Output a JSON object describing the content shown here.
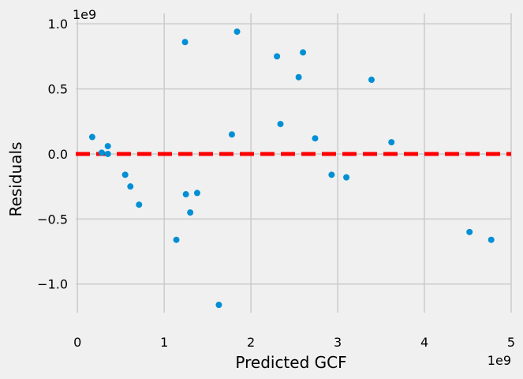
{
  "chart_data": {
    "type": "scatter",
    "title": "",
    "xlabel": "Predicted GCF",
    "ylabel": "Residuals",
    "x_offset_label": "1e9",
    "y_offset_label": "1e9",
    "xlim": [
      -0.02,
      5.0
    ],
    "ylim": [
      -1.22,
      1.08
    ],
    "x_ticks": [
      0,
      1,
      2,
      3,
      4,
      5
    ],
    "x_tick_labels": [
      "0",
      "1",
      "2",
      "3",
      "4",
      "5"
    ],
    "y_ticks": [
      1.0,
      0.5,
      0.0,
      -0.5,
      -1.0
    ],
    "y_tick_labels": [
      "1.0",
      "0.5",
      "0.0",
      "−0.5",
      "−1.0"
    ],
    "grid": true,
    "point_color": "#008fd5",
    "reference_line": {
      "y": 0,
      "color": "#ff0000",
      "style": "dashed"
    },
    "background_color": "#f0f0f0",
    "grid_color": "#cbcbcb",
    "series": [
      {
        "x": [
          0.17,
          0.28,
          0.35,
          0.35,
          0.55,
          0.61,
          0.71,
          1.14,
          1.24,
          1.25,
          1.3,
          1.38,
          1.63,
          1.78,
          1.84,
          2.3,
          2.34,
          2.55,
          2.6,
          2.74,
          2.93,
          3.1,
          3.39,
          3.62,
          4.52,
          4.77
        ],
        "y": [
          0.13,
          0.01,
          0.06,
          0.0,
          -0.16,
          -0.25,
          -0.39,
          -0.66,
          0.86,
          -0.31,
          -0.45,
          -0.3,
          -1.16,
          0.15,
          0.94,
          0.75,
          0.23,
          0.59,
          0.78,
          0.12,
          -0.16,
          -0.18,
          0.57,
          0.09,
          -0.6,
          -0.66
        ]
      }
    ]
  }
}
